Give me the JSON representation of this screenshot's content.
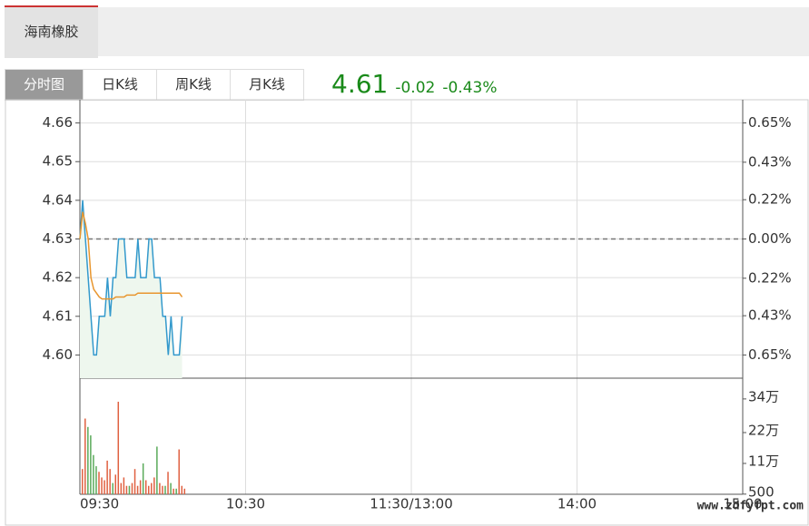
{
  "header": {
    "tab": "海南橡胶"
  },
  "tabs": [
    "分时图",
    "日K线",
    "周K线",
    "月K线"
  ],
  "quote": {
    "price": "4.61",
    "change": "-0.02",
    "change_pct": "-0.43%"
  },
  "watermark": "www.zdfyfpt.com",
  "chart_data": [
    {
      "type": "line",
      "x": [
        0,
        1,
        2,
        3,
        4,
        5,
        6,
        7,
        8,
        9,
        10,
        11,
        12,
        13,
        14,
        15,
        16,
        17,
        18,
        19,
        20,
        21,
        22,
        23,
        24,
        25,
        26,
        27,
        28,
        29,
        30,
        31,
        32,
        33,
        34,
        35,
        36,
        37
      ],
      "xlim": [
        0,
        240
      ],
      "xticks": [
        {
          "value": 0,
          "label": "09:30"
        },
        {
          "value": 60,
          "label": "10:30"
        },
        {
          "value": 120,
          "label": "11:30/13:00"
        },
        {
          "value": 180,
          "label": "14:00"
        },
        {
          "value": 240,
          "label": "15:00"
        }
      ],
      "ylim": [
        4.594,
        4.666
      ],
      "yticks": [
        {
          "value": 4.6,
          "label": "4.60"
        },
        4.61,
        4.62,
        4.63,
        4.64,
        4.65,
        4.66
      ],
      "y2lim": [
        -0.78,
        0.78
      ],
      "y2ticks": [
        {
          "value": 0.65,
          "label": "0.65%"
        },
        {
          "value": 0.43,
          "label": "0.43%"
        },
        {
          "value": 0.22,
          "label": "0.22%"
        },
        {
          "value": 0,
          "label": "0.00%"
        },
        {
          "value": -0.22,
          "label": "0.22%"
        },
        {
          "value": -0.43,
          "label": "0.43%"
        },
        {
          "value": -0.65,
          "label": "0.65%"
        }
      ],
      "grid": true,
      "area_color": "#eef7ee",
      "series": [
        {
          "color": "#3399cc",
          "values": [
            4.63,
            4.64,
            4.63,
            4.62,
            4.61,
            4.6,
            4.6,
            4.61,
            4.61,
            4.61,
            4.62,
            4.61,
            4.62,
            4.62,
            4.63,
            4.63,
            4.63,
            4.62,
            4.62,
            4.62,
            4.62,
            4.63,
            4.62,
            4.62,
            4.62,
            4.63,
            4.63,
            4.62,
            4.62,
            4.62,
            4.61,
            4.61,
            4.6,
            4.61,
            4.6,
            4.6,
            4.6,
            4.61
          ]
        },
        {
          "color": "#e8962e",
          "values": [
            4.63,
            4.637,
            4.634,
            4.63,
            4.62,
            4.617,
            4.616,
            4.615,
            4.6145,
            4.6145,
            4.6145,
            4.6145,
            4.6145,
            4.615,
            4.615,
            4.615,
            4.615,
            4.6155,
            4.6155,
            4.6155,
            4.6155,
            4.616,
            4.616,
            4.616,
            4.616,
            4.616,
            4.616,
            4.616,
            4.616,
            4.616,
            4.616,
            4.616,
            4.616,
            4.616,
            4.616,
            4.616,
            4.616,
            4.615
          ]
        }
      ]
    },
    {
      "type": "bar",
      "x": [
        0,
        1,
        2,
        3,
        4,
        5,
        6,
        7,
        8,
        9,
        10,
        11,
        12,
        13,
        14,
        15,
        16,
        17,
        18,
        19,
        20,
        21,
        22,
        23,
        24,
        25,
        26,
        27,
        28,
        29,
        30,
        31,
        32,
        33,
        34,
        35,
        36,
        37
      ],
      "xlim": [
        0,
        240
      ],
      "ylim": [
        0,
        414000
      ],
      "yticks": [
        500,
        {
          "value": 110000,
          "label": "11万"
        },
        {
          "value": 220000,
          "label": "22万"
        },
        {
          "value": 340000,
          "label": "34万"
        }
      ],
      "up_color": "#e06040",
      "down_color": "#5aaa5a",
      "values": [
        90000,
        270000,
        240000,
        210000,
        140000,
        100000,
        80000,
        60000,
        50000,
        120000,
        90000,
        40000,
        70000,
        330000,
        40000,
        60000,
        30000,
        30000,
        40000,
        90000,
        30000,
        50000,
        110000,
        50000,
        30000,
        40000,
        60000,
        170000,
        40000,
        30000,
        30000,
        80000,
        40000,
        20000,
        20000,
        160000,
        30000,
        20000
      ]
    }
  ]
}
